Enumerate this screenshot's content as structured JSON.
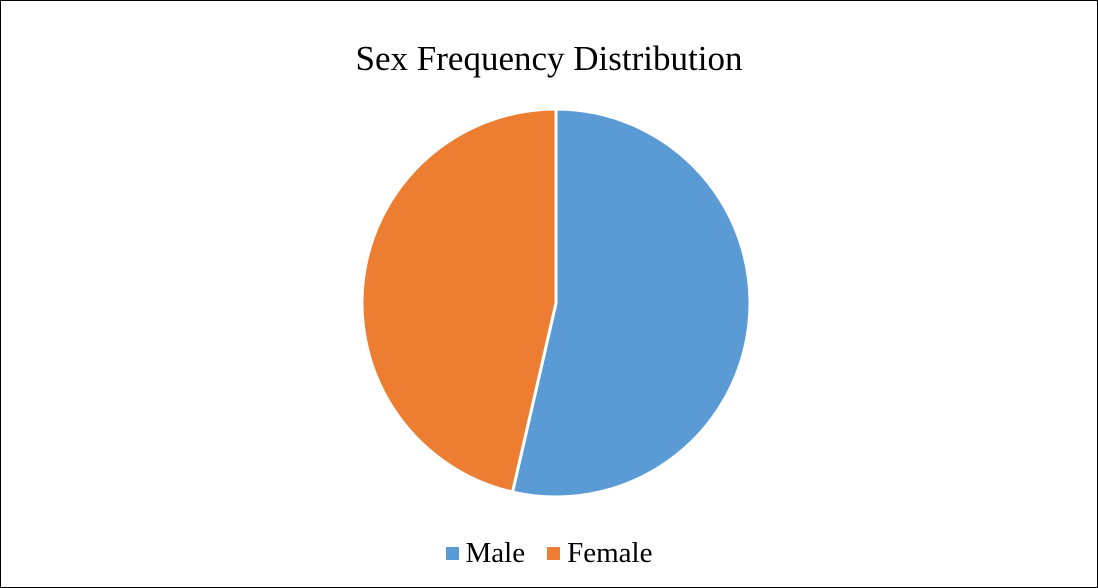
{
  "chart_data": {
    "type": "pie",
    "title": "Sex Frequency Distribution",
    "categories": [
      "Male",
      "Female"
    ],
    "values": [
      53.6,
      46.4
    ],
    "colors": [
      "#5b9bd5",
      "#ed7d31"
    ],
    "start_angle_deg": 0,
    "direction": "clockwise",
    "legend_position": "bottom",
    "data_labels": false
  }
}
